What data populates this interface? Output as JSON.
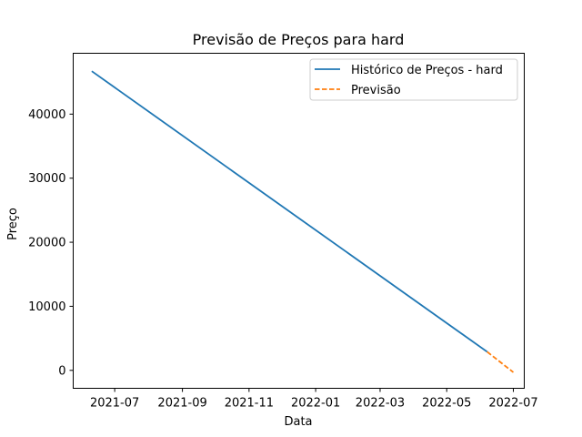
{
  "chart_data": {
    "type": "line",
    "title": "Previsão de Preços para hard",
    "xlabel": "Data",
    "ylabel": "Preço",
    "x_ticks": [
      "2021-07-01",
      "2021-09-01",
      "2021-11-01",
      "2022-01-01",
      "2022-03-01",
      "2022-05-01",
      "2022-07-01"
    ],
    "x_tick_labels": [
      "2021-07",
      "2021-09",
      "2021-11",
      "2022-01",
      "2022-03",
      "2022-05",
      "2022-07"
    ],
    "y_ticks": [
      0,
      10000,
      20000,
      30000,
      40000
    ],
    "y_tick_labels": [
      "0",
      "10000",
      "20000",
      "30000",
      "40000"
    ],
    "xlim": [
      "2021-05-24",
      "2022-07-11"
    ],
    "ylim": [
      -2800,
      49500
    ],
    "grid": false,
    "legend_position": "top-right",
    "series": [
      {
        "name": "Histórico de Preços - hard",
        "color": "#1f77b4",
        "style": "solid",
        "points": [
          {
            "x": "2021-06-10",
            "y": 46700
          },
          {
            "x": "2022-06-07",
            "y": 2900
          }
        ]
      },
      {
        "name": "Previsão",
        "color": "#ff7f0e",
        "style": "dashed",
        "points": [
          {
            "x": "2022-06-07",
            "y": 2900
          },
          {
            "x": "2022-07-01",
            "y": -300
          }
        ]
      }
    ]
  }
}
